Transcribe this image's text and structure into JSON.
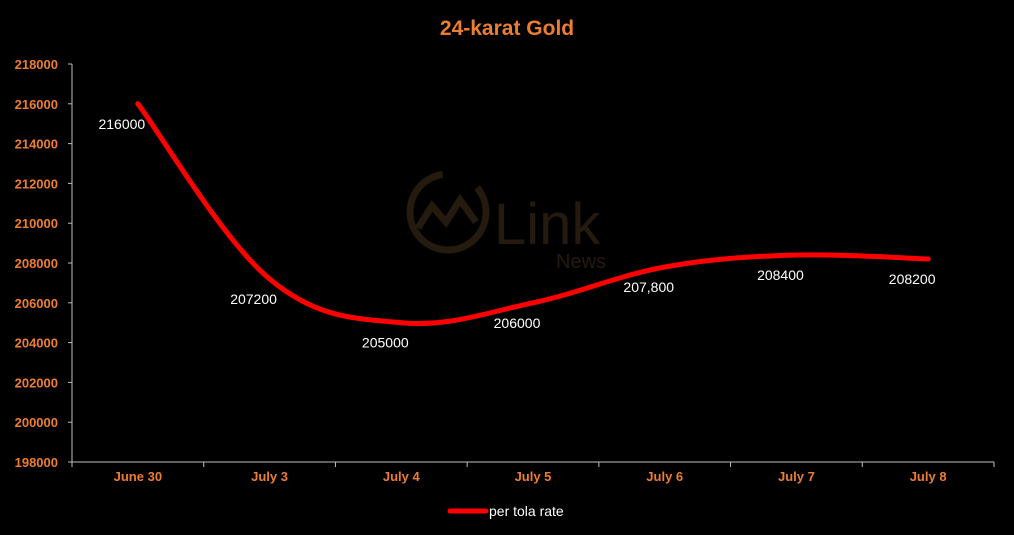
{
  "chart_data": {
    "type": "line",
    "title": "24-karat Gold",
    "categories": [
      "June 30",
      "July 3",
      "July 4",
      "July 5",
      "July 6",
      "July 7",
      "July 8"
    ],
    "series": [
      {
        "name": "per tola rate",
        "values": [
          216000,
          207200,
          205000,
          206000,
          207800,
          208400,
          208200
        ],
        "labels": [
          "216000",
          "207200",
          "205000",
          "206000",
          "207,800",
          "208400",
          "208200"
        ],
        "color": "#ff0000"
      }
    ],
    "ylim": [
      198000,
      218000
    ],
    "yticks": [
      "198000",
      "200000",
      "202000",
      "204000",
      "206000",
      "208000",
      "210000",
      "212000",
      "214000",
      "216000",
      "218000"
    ],
    "grid": false,
    "legend": "bottom"
  },
  "watermark": {
    "main": "Link",
    "sub": "News"
  },
  "colors": {
    "background": "#000000",
    "accent": "#ed7d31",
    "line": "#ff0000",
    "axis": "#bfbfbf",
    "label": "#ffffff"
  }
}
